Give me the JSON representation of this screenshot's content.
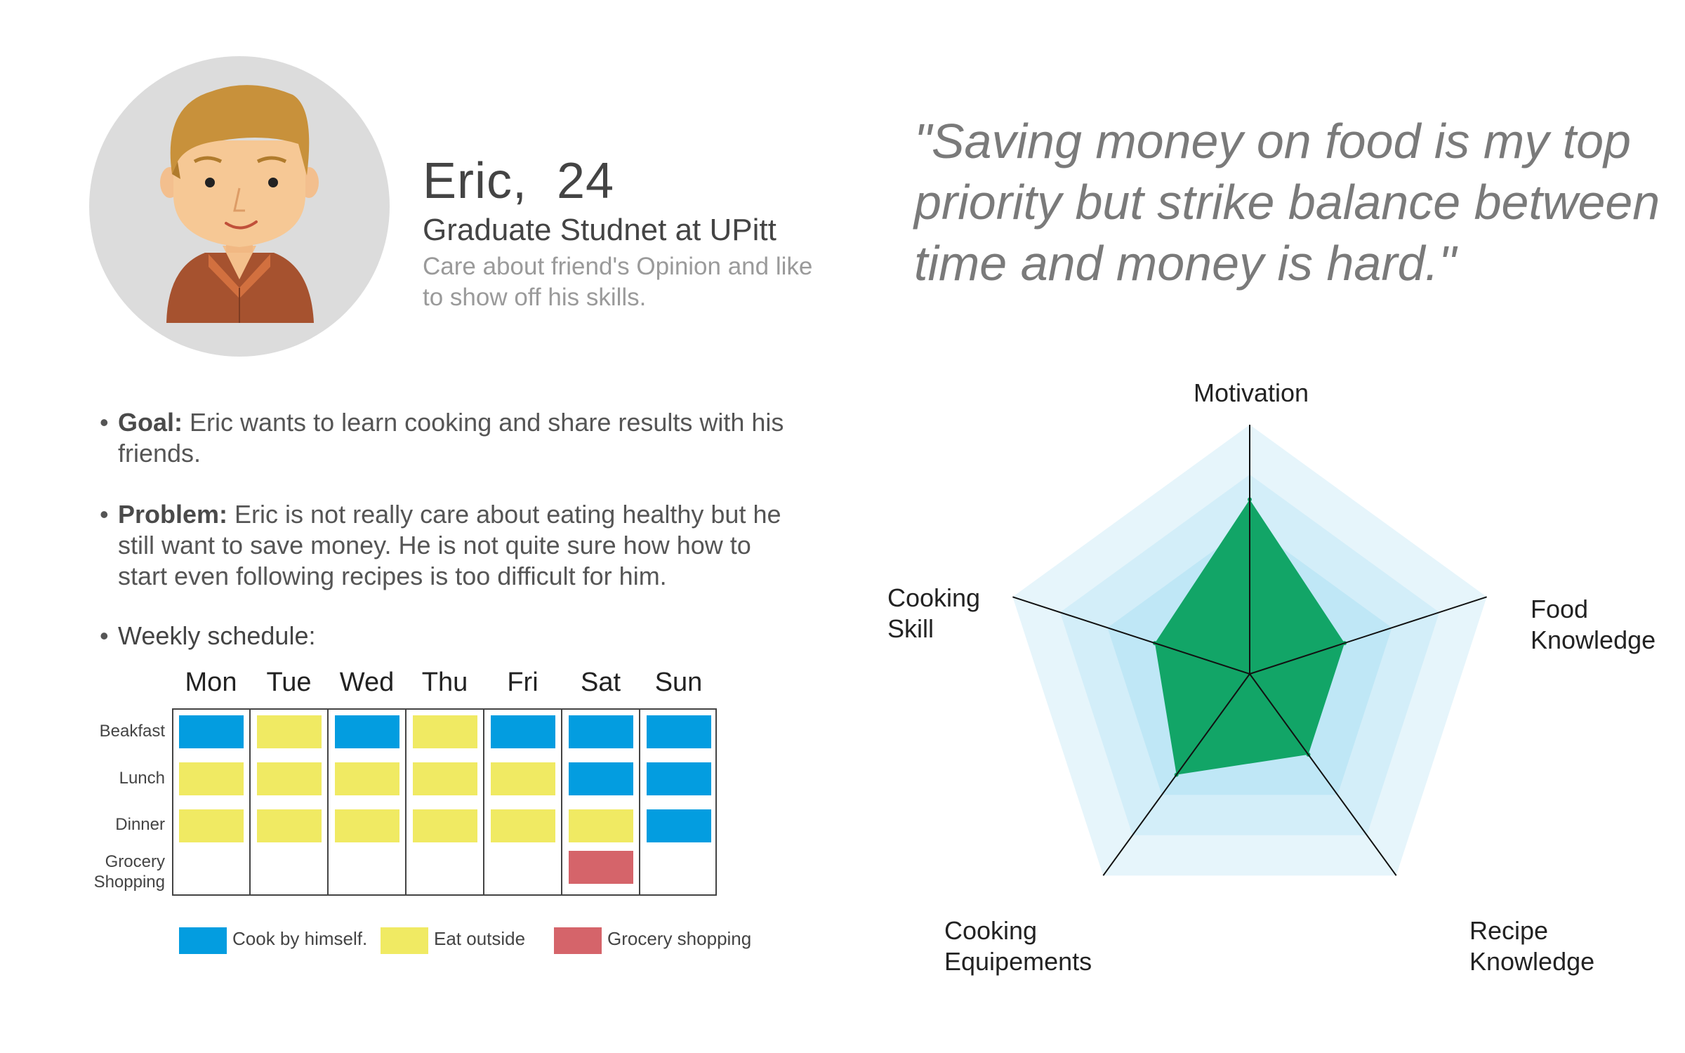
{
  "persona": {
    "name": "Eric,  24",
    "role": "Graduate Studnet at UPitt",
    "description": "Care about friend's Opinion and like to show off his skills.",
    "quote": "\"Saving money on food is my top priority but strike balance between time and money is hard.\""
  },
  "bullets": {
    "marker": "•",
    "goal_label": "Goal:",
    "goal_line1": " Eric wants to learn cooking and share results with his",
    "goal_line2": "friends.",
    "problem_label": "Problem:",
    "problem_line1": " Eric is not really care about eating healthy but he",
    "problem_line2": "still want to save money. He is not quite sure how how to",
    "problem_line3": "start even following recipes is too difficult for him.",
    "schedule_label": "Weekly schedule:"
  },
  "schedule": {
    "days": [
      "Mon",
      "Tue",
      "Wed",
      "Thu",
      "Fri",
      "Sat",
      "Sun"
    ],
    "rows": [
      "Beakfast",
      "Lunch",
      "Dinner",
      "Grocery Shopping"
    ],
    "row_lines": [
      [
        "Beakfast"
      ],
      [
        "Lunch"
      ],
      [
        "Dinner"
      ],
      [
        "Grocery",
        "Shopping"
      ]
    ],
    "cells": [
      [
        "cook",
        "outside",
        "cook",
        "outside",
        "cook",
        "cook",
        "cook"
      ],
      [
        "outside",
        "outside",
        "outside",
        "outside",
        "outside",
        "cook",
        "cook"
      ],
      [
        "outside",
        "outside",
        "outside",
        "outside",
        "outside",
        "outside",
        "cook"
      ],
      [
        null,
        null,
        null,
        null,
        null,
        "grocery",
        null
      ]
    ],
    "colors": {
      "cook": "#039de0",
      "outside": "#f0ea63",
      "grocery": "#d5646a"
    },
    "legend": [
      {
        "key": "cook",
        "label": "Cook by himself."
      },
      {
        "key": "outside",
        "label": "Eat outside"
      },
      {
        "key": "grocery",
        "label": "Grocery shopping"
      }
    ]
  },
  "chart_data": {
    "type": "radar",
    "axes": [
      "Motivation",
      "Food Knowledge",
      "Recipe Knowledge",
      "Cooking Equipements",
      "Cooking Skill"
    ],
    "axis_label_lines": [
      [
        "Motivation"
      ],
      [
        "Food",
        "Knowledge"
      ],
      [
        "Recipe",
        "Knowledge"
      ],
      [
        "Cooking",
        "Equipements"
      ],
      [
        "Cooking",
        "Skill"
      ]
    ],
    "values": [
      3.5,
      2.0,
      2.0,
      2.5,
      2.0
    ],
    "max": 5,
    "levels": 5,
    "fill_color": "#12a567",
    "band_colors": [
      "#e6f5fb",
      "#d3eef9",
      "#bfe7f6",
      "#a9e0f3",
      "#92d8f0"
    ]
  }
}
